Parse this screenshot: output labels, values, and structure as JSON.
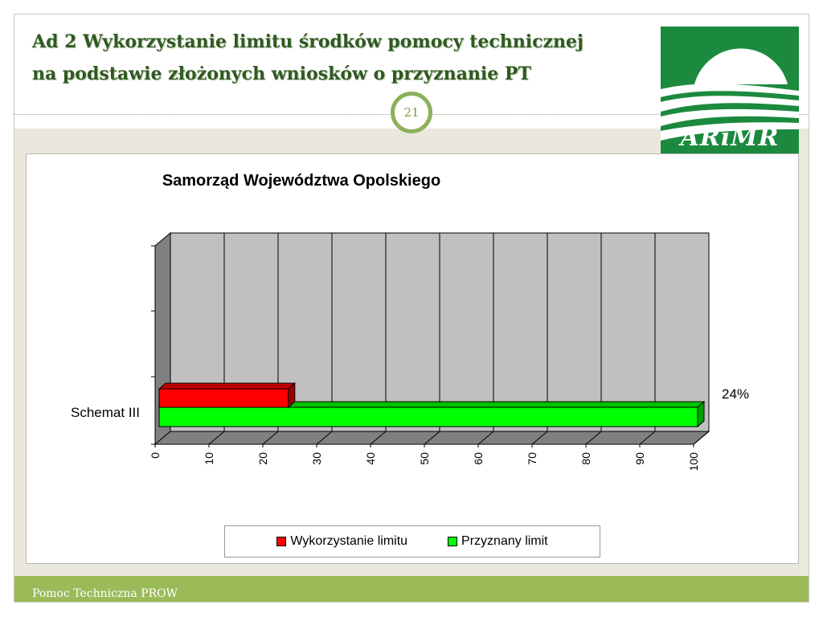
{
  "slide": {
    "title_line1": "Ad 2 Wykorzystanie limitu środków pomocy technicznej",
    "title_line2": "na podstawie złożonych wniosków o przyznanie PT",
    "number": "21",
    "logo_text": "ARiMR",
    "footer": "Pomoc Techniczna PROW"
  },
  "colors": {
    "title": "#2f5a22",
    "accent": "#8db05a",
    "logo": "#1c8a3e",
    "footer": "#9bbb59",
    "series_used": "#ff0000",
    "series_limit": "#00ff00"
  },
  "chart_data": {
    "type": "bar",
    "orientation": "horizontal",
    "three_d": true,
    "title": "Samorząd Województwa Opolskiego",
    "categories": [
      "Schemat III"
    ],
    "series": [
      {
        "name": "Wykorzystanie limitu",
        "values": [
          24
        ],
        "color": "#ff0000"
      },
      {
        "name": "Przyznany limit",
        "values": [
          100
        ],
        "color": "#00ff00"
      }
    ],
    "data_labels": [
      "24%"
    ],
    "xlim": [
      0,
      100
    ],
    "x_ticks": [
      "0",
      "10",
      "20",
      "30",
      "40",
      "50",
      "60",
      "70",
      "80",
      "90",
      "100"
    ],
    "grid": true,
    "legend": "bottom"
  }
}
